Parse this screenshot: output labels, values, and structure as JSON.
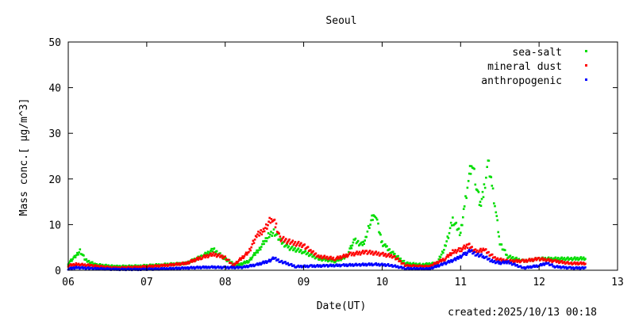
{
  "chart_data": {
    "type": "scatter",
    "title": "Seoul",
    "xlabel": "Date(UT)",
    "ylabel": "Mass conc.[ μg/m^3]",
    "xlim": [
      6,
      13
    ],
    "ylim": [
      0,
      50
    ],
    "x_ticks": [
      "06",
      "07",
      "08",
      "09",
      "10",
      "11",
      "12",
      "13"
    ],
    "y_ticks": [
      "0",
      "10",
      "20",
      "30",
      "40",
      "50"
    ],
    "grid": false,
    "legend_position": "top-right",
    "footer": "created:2025/10/13 00:18",
    "series": [
      {
        "name": "sea-salt",
        "color": "#00dd00",
        "points": [
          [
            6.0,
            1.5
          ],
          [
            6.08,
            2.8
          ],
          [
            6.15,
            4.3
          ],
          [
            6.22,
            2.2
          ],
          [
            6.35,
            1.2
          ],
          [
            6.6,
            0.8
          ],
          [
            6.9,
            0.9
          ],
          [
            7.2,
            1.2
          ],
          [
            7.5,
            1.5
          ],
          [
            7.7,
            3.0
          ],
          [
            7.85,
            4.5
          ],
          [
            8.0,
            2.5
          ],
          [
            8.15,
            1.0
          ],
          [
            8.3,
            2.0
          ],
          [
            8.45,
            5.0
          ],
          [
            8.55,
            7.5
          ],
          [
            8.62,
            8.5
          ],
          [
            8.7,
            6.5
          ],
          [
            8.8,
            5.0
          ],
          [
            9.0,
            4.0
          ],
          [
            9.2,
            2.5
          ],
          [
            9.4,
            2.0
          ],
          [
            9.55,
            3.0
          ],
          [
            9.6,
            5.0
          ],
          [
            9.65,
            6.5
          ],
          [
            9.75,
            5.5
          ],
          [
            9.8,
            7.5
          ],
          [
            9.85,
            10.5
          ],
          [
            9.9,
            12.8
          ],
          [
            9.95,
            9.5
          ],
          [
            10.0,
            6.0
          ],
          [
            10.05,
            5.0
          ],
          [
            10.15,
            3.5
          ],
          [
            10.3,
            1.5
          ],
          [
            10.5,
            1.2
          ],
          [
            10.7,
            1.5
          ],
          [
            10.8,
            5.0
          ],
          [
            10.9,
            11.0
          ],
          [
            11.0,
            8.0
          ],
          [
            11.05,
            14.0
          ],
          [
            11.1,
            20.0
          ],
          [
            11.15,
            23.5
          ],
          [
            11.2,
            19.0
          ],
          [
            11.25,
            14.0
          ],
          [
            11.3,
            18.0
          ],
          [
            11.35,
            23.5
          ],
          [
            11.4,
            18.5
          ],
          [
            11.45,
            13.0
          ],
          [
            11.5,
            6.0
          ],
          [
            11.6,
            3.0
          ],
          [
            11.8,
            2.0
          ],
          [
            12.0,
            2.5
          ],
          [
            12.2,
            2.5
          ],
          [
            12.4,
            2.5
          ],
          [
            12.6,
            2.6
          ]
        ]
      },
      {
        "name": "mineral dust",
        "color": "#ff0000",
        "points": [
          [
            6.0,
            1.0
          ],
          [
            6.1,
            1.3
          ],
          [
            6.3,
            1.0
          ],
          [
            6.6,
            0.5
          ],
          [
            6.9,
            0.7
          ],
          [
            7.2,
            1.0
          ],
          [
            7.5,
            1.5
          ],
          [
            7.7,
            2.8
          ],
          [
            7.85,
            3.5
          ],
          [
            8.0,
            2.8
          ],
          [
            8.1,
            1.0
          ],
          [
            8.3,
            4.0
          ],
          [
            8.4,
            7.5
          ],
          [
            8.5,
            9.0
          ],
          [
            8.6,
            11.5
          ],
          [
            8.65,
            9.5
          ],
          [
            8.7,
            7.0
          ],
          [
            8.85,
            6.0
          ],
          [
            9.0,
            5.5
          ],
          [
            9.1,
            4.0
          ],
          [
            9.2,
            3.0
          ],
          [
            9.4,
            2.5
          ],
          [
            9.6,
            3.5
          ],
          [
            9.8,
            4.0
          ],
          [
            10.0,
            3.5
          ],
          [
            10.15,
            3.0
          ],
          [
            10.3,
            1.0
          ],
          [
            10.6,
            0.8
          ],
          [
            10.8,
            2.5
          ],
          [
            10.9,
            4.0
          ],
          [
            11.0,
            4.5
          ],
          [
            11.1,
            5.5
          ],
          [
            11.2,
            4.0
          ],
          [
            11.3,
            4.5
          ],
          [
            11.45,
            2.5
          ],
          [
            11.6,
            2.0
          ],
          [
            11.8,
            2.0
          ],
          [
            12.0,
            2.5
          ],
          [
            12.2,
            2.0
          ],
          [
            12.4,
            1.5
          ],
          [
            12.6,
            1.5
          ]
        ]
      },
      {
        "name": "anthropogenic",
        "color": "#0000ff",
        "points": [
          [
            6.0,
            0.3
          ],
          [
            6.1,
            0.6
          ],
          [
            6.3,
            0.4
          ],
          [
            6.6,
            0.2
          ],
          [
            6.9,
            0.2
          ],
          [
            7.2,
            0.3
          ],
          [
            7.5,
            0.5
          ],
          [
            7.8,
            0.7
          ],
          [
            8.0,
            0.6
          ],
          [
            8.2,
            0.6
          ],
          [
            8.4,
            1.2
          ],
          [
            8.55,
            2.0
          ],
          [
            8.62,
            2.6
          ],
          [
            8.7,
            2.0
          ],
          [
            8.9,
            0.8
          ],
          [
            9.1,
            0.9
          ],
          [
            9.3,
            1.0
          ],
          [
            9.5,
            1.1
          ],
          [
            9.7,
            1.2
          ],
          [
            9.9,
            1.3
          ],
          [
            10.1,
            1.1
          ],
          [
            10.3,
            0.4
          ],
          [
            10.6,
            0.3
          ],
          [
            10.8,
            1.5
          ],
          [
            10.95,
            2.5
          ],
          [
            11.05,
            3.5
          ],
          [
            11.12,
            4.2
          ],
          [
            11.2,
            3.5
          ],
          [
            11.3,
            3.0
          ],
          [
            11.4,
            2.0
          ],
          [
            11.5,
            1.6
          ],
          [
            11.6,
            1.8
          ],
          [
            11.8,
            0.5
          ],
          [
            12.0,
            1.0
          ],
          [
            12.1,
            1.6
          ],
          [
            12.2,
            0.8
          ],
          [
            12.4,
            0.5
          ],
          [
            12.6,
            0.5
          ]
        ]
      }
    ]
  }
}
